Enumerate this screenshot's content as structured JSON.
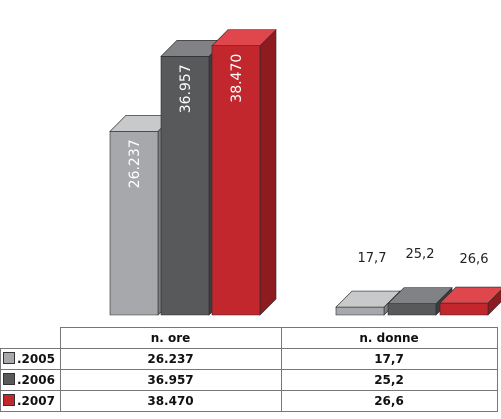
{
  "chart_data": {
    "type": "bar",
    "categories": [
      "n. ore",
      "n. donne"
    ],
    "series": [
      {
        "name": ".2005",
        "values": [
          26237,
          17.7
        ],
        "labels": [
          "26.237",
          "17,7"
        ],
        "table_values": [
          "26.237",
          "17,7"
        ]
      },
      {
        "name": ".2006",
        "values": [
          36957,
          25.2
        ],
        "labels": [
          "36.957",
          "25,2"
        ],
        "table_values": [
          "36.957",
          "25,2"
        ]
      },
      {
        "name": ".2007",
        "values": [
          38470,
          26.6
        ],
        "labels": [
          "38.470",
          "26,6"
        ],
        "table_values": [
          "38.470",
          "26,6"
        ]
      }
    ],
    "ylim": [
      0,
      40000
    ],
    "title": "",
    "xlabel": "",
    "ylabel": "",
    "grid": false,
    "legend": "table-left",
    "colors": {
      "front": [
        "#a6a8ab",
        "#58595b",
        "#c1272d"
      ],
      "top": [
        "#c7c9cb",
        "#808285",
        "#e0474c"
      ],
      "side": [
        "#7d7f82",
        "#3c3d3f",
        "#8e1b1f"
      ]
    }
  }
}
